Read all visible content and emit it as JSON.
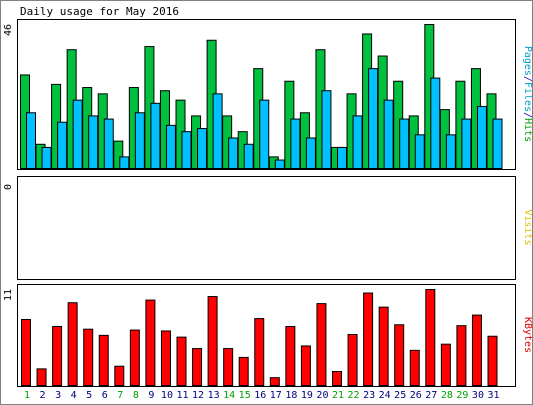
{
  "chart_data": {
    "title": "Daily usage for May 2016",
    "type": "bar",
    "days": [
      "1",
      "2",
      "3",
      "4",
      "5",
      "6",
      "7",
      "8",
      "9",
      "10",
      "11",
      "12",
      "13",
      "14",
      "15",
      "16",
      "17",
      "18",
      "19",
      "20",
      "21",
      "22",
      "23",
      "24",
      "25",
      "26",
      "27",
      "28",
      "29",
      "30",
      "31"
    ],
    "weekend_days": [
      "1",
      "7",
      "8",
      "14",
      "15",
      "21",
      "22",
      "28",
      "29"
    ],
    "panels": [
      {
        "name": "hits-files-pages",
        "ymax": 46,
        "ymax_label": "46",
        "right_label": [
          "Pages",
          "/",
          "Files",
          "/",
          "Hits"
        ],
        "right_label_colors": [
          "#00a0c8",
          "#0000c8",
          "#00a0c8",
          "#0000c8",
          "#00a000"
        ],
        "series": [
          {
            "name": "Hits",
            "color": "#00c040",
            "values": [
              30,
              8,
              27,
              38,
              26,
              24,
              9,
              26,
              39,
              25,
              22,
              17,
              41,
              17,
              12,
              32,
              4,
              28,
              18,
              38,
              7,
              24,
              43,
              36,
              28,
              17,
              46,
              19,
              28,
              32,
              24
            ]
          },
          {
            "name": "Files",
            "color": "#00c0ff",
            "values": [
              18,
              7,
              15,
              22,
              17,
              16,
              4,
              18,
              21,
              14,
              12,
              13,
              24,
              10,
              8,
              22,
              3,
              16,
              10,
              25,
              7,
              17,
              32,
              22,
              16,
              11,
              29,
              11,
              16,
              20,
              16
            ]
          },
          {
            "name": "Pages",
            "color": "#0000ff",
            "values": [
              0,
              0,
              0,
              0,
              0,
              0,
              0,
              0,
              0,
              0,
              0,
              0,
              0,
              0,
              0,
              0,
              0,
              0,
              0,
              0,
              0,
              0,
              0,
              0,
              0,
              0,
              0,
              0,
              0,
              0,
              0
            ]
          }
        ]
      },
      {
        "name": "visits",
        "ymax": 0,
        "ymax_label": "0",
        "right_label": [
          "Visits"
        ],
        "right_label_colors": [
          "#e0c000"
        ],
        "series": [
          {
            "name": "Visits",
            "color": "#ffff00",
            "values": [
              0,
              0,
              0,
              0,
              0,
              0,
              0,
              0,
              0,
              0,
              0,
              0,
              0,
              0,
              0,
              0,
              0,
              0,
              0,
              0,
              0,
              0,
              0,
              0,
              0,
              0,
              0,
              0,
              0,
              0,
              0
            ]
          }
        ]
      },
      {
        "name": "kbytes",
        "ymax": 11,
        "ymax_label": "11",
        "right_label": [
          "KBytes"
        ],
        "right_label_colors": [
          "#e00000"
        ],
        "series": [
          {
            "name": "KBytes",
            "color": "#ff0000",
            "values": [
              7.6,
              2.0,
              6.8,
              9.5,
              6.5,
              5.8,
              2.3,
              6.4,
              9.8,
              6.3,
              5.6,
              4.3,
              10.2,
              4.3,
              3.3,
              7.7,
              1.0,
              6.8,
              4.6,
              9.4,
              1.7,
              5.9,
              10.6,
              9.0,
              7.0,
              4.1,
              11.0,
              4.8,
              6.9,
              8.1,
              5.7
            ]
          }
        ]
      }
    ]
  },
  "colors": {
    "weekday_label": "#000080",
    "weekend_label": "#00a000",
    "frame": "#000000",
    "border": "#808080",
    "background": "#ffffff"
  }
}
